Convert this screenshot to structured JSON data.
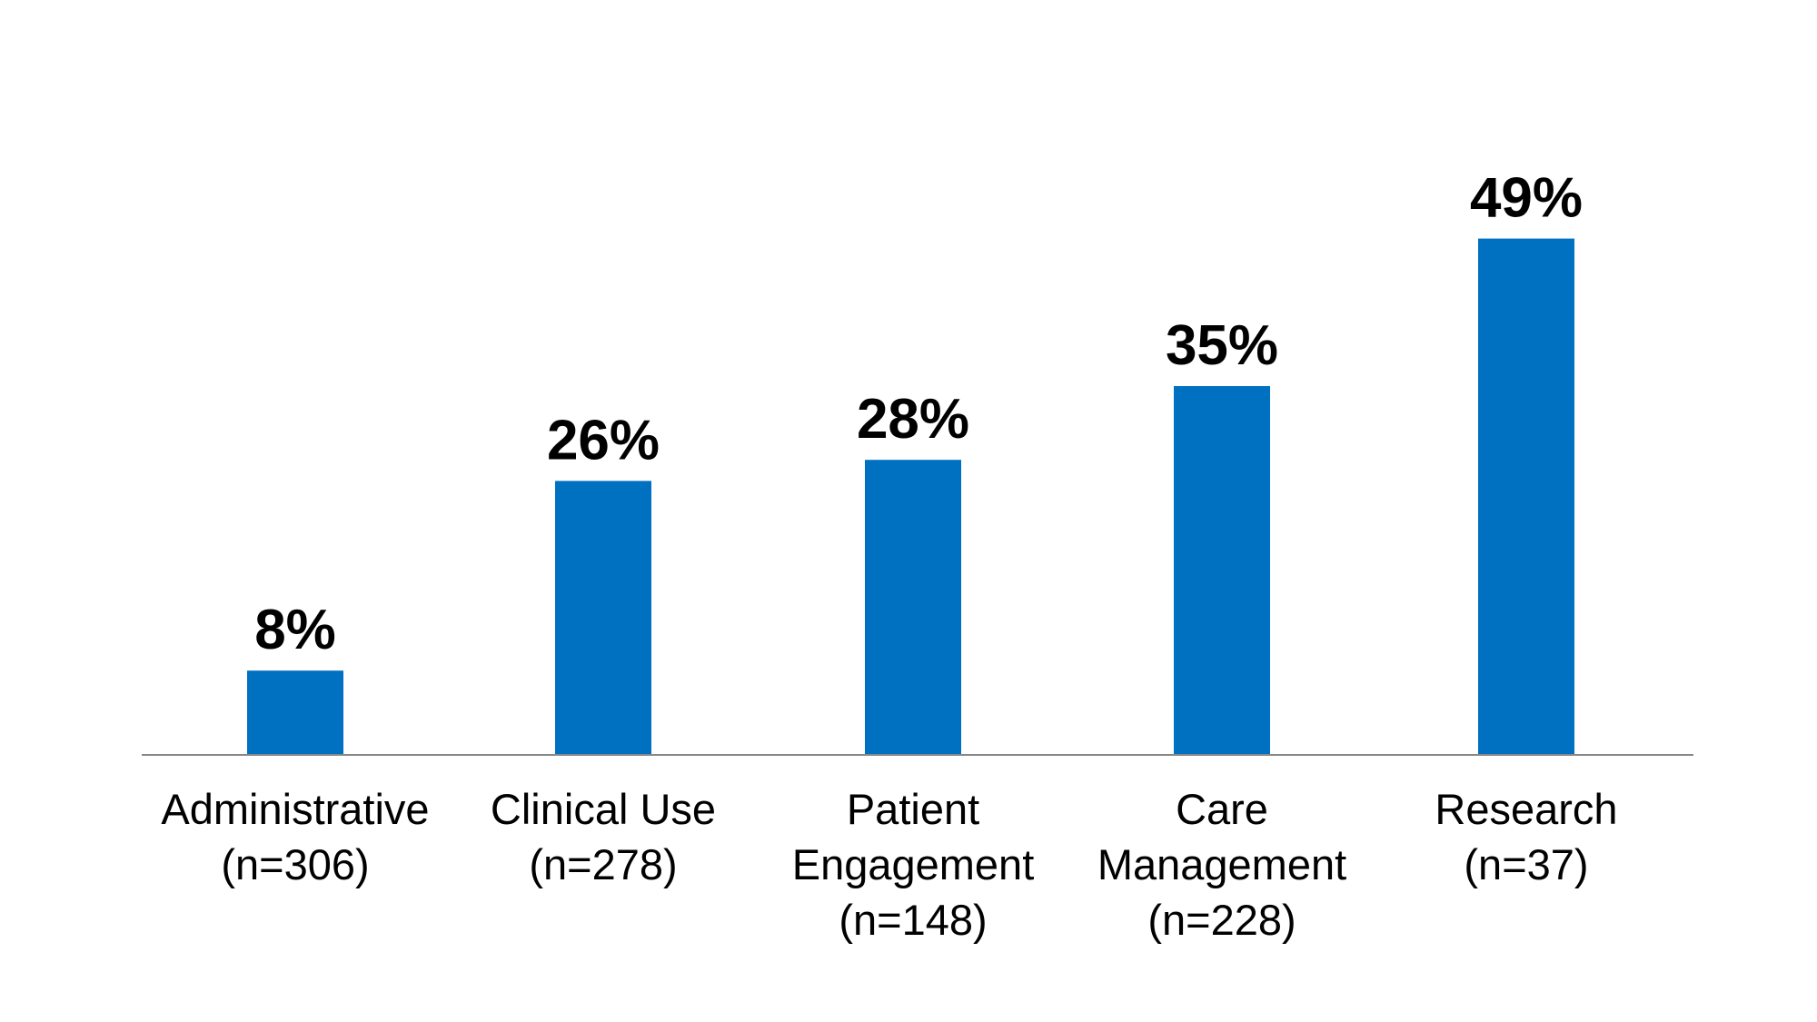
{
  "chart_data": {
    "type": "bar",
    "title": "",
    "xlabel": "",
    "ylabel": "",
    "ylim": [
      0,
      100
    ],
    "grid": false,
    "categories": [
      [
        "Administrative",
        "(n=306)"
      ],
      [
        "Clinical Use",
        "(n=278)"
      ],
      [
        "Patient",
        "Engagement",
        "(n=148)"
      ],
      [
        "Care",
        "Management",
        "(n=228)"
      ],
      [
        "Research",
        "(n=37)"
      ]
    ],
    "values": [
      8,
      26,
      28,
      35,
      49
    ],
    "data_labels": [
      "8%",
      "26%",
      "28%",
      "35%",
      "49%"
    ],
    "colors": {
      "bar": "#0070C0",
      "axis": "#888888",
      "text": "#000000"
    }
  }
}
